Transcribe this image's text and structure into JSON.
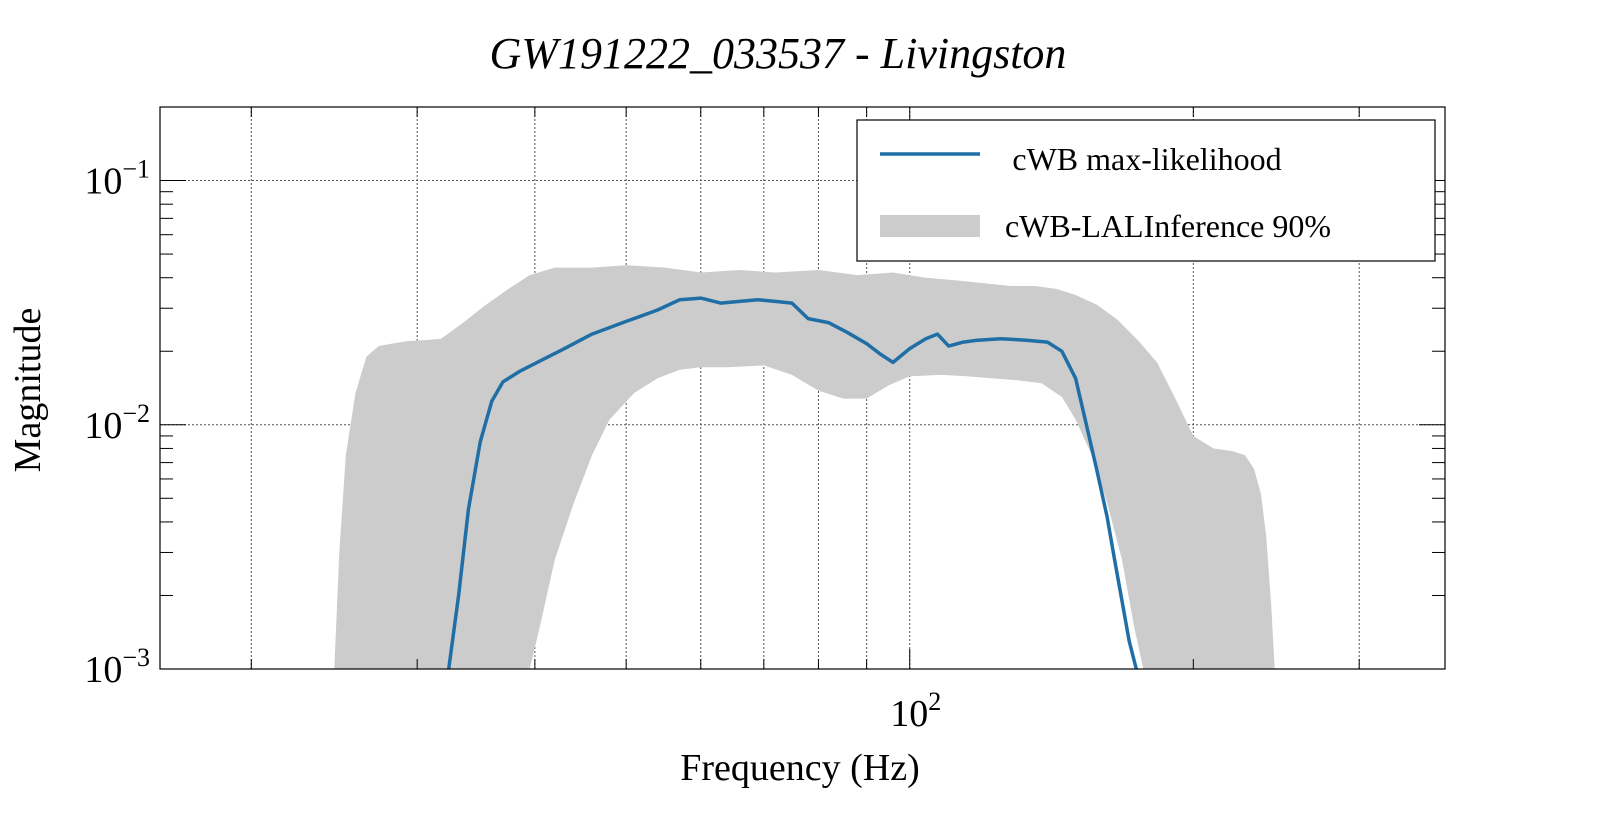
{
  "chart_data": {
    "type": "line",
    "title": "GW191222_033537 - Livingston",
    "xlabel": "Frequency (Hz)",
    "ylabel": "Magnitude",
    "xscale": "log",
    "yscale": "log",
    "xlim": [
      16,
      370
    ],
    "ylim": [
      0.001,
      0.2
    ],
    "grid": true,
    "legend_position": "top-right",
    "x_major_tick": {
      "value": 100,
      "base": "10",
      "exp": "2"
    },
    "x_minor_ticks": [
      20,
      30,
      40,
      50,
      60,
      70,
      80,
      90,
      200,
      300
    ],
    "y_major_ticks": [
      {
        "value": 0.1,
        "base": "10",
        "exp": "−1"
      },
      {
        "value": 0.01,
        "base": "10",
        "exp": "−2"
      },
      {
        "value": 0.001,
        "base": "10",
        "exp": "−3"
      }
    ],
    "y_minor_ticks": [
      0.002,
      0.003,
      0.004,
      0.005,
      0.006,
      0.007,
      0.008,
      0.009,
      0.02,
      0.03,
      0.04,
      0.05,
      0.06,
      0.07,
      0.08,
      0.09,
      0.2
    ],
    "series": [
      {
        "name": "cWB max-likelihood",
        "kind": "line",
        "color": "#1f6fa6",
        "x": [
          32.4,
          33.2,
          34.0,
          35.0,
          36.0,
          37.0,
          38.5,
          40.0,
          43.0,
          46.0,
          50.0,
          54.0,
          57.0,
          60.0,
          63.0,
          66.0,
          69.0,
          72.0,
          75.0,
          78.0,
          82.0,
          86.0,
          90.0,
          93.0,
          96.0,
          100.0,
          104.0,
          107.0,
          110.0,
          114.0,
          118.0,
          125.0,
          133.0,
          140.0,
          145.0,
          150.0,
          154.0,
          158.0,
          162.0,
          165.0,
          168.0,
          171.0,
          174.0
        ],
        "y": [
          0.001,
          0.002,
          0.0045,
          0.0085,
          0.0125,
          0.015,
          0.0165,
          0.0178,
          0.0205,
          0.0235,
          0.0265,
          0.0295,
          0.0325,
          0.033,
          0.0315,
          0.032,
          0.0325,
          0.032,
          0.0315,
          0.0272,
          0.0262,
          0.0238,
          0.0215,
          0.0195,
          0.018,
          0.0205,
          0.0225,
          0.0235,
          0.021,
          0.0218,
          0.0222,
          0.0225,
          0.0222,
          0.0218,
          0.02,
          0.0155,
          0.01,
          0.0065,
          0.0042,
          0.0028,
          0.0019,
          0.0013,
          0.001
        ]
      },
      {
        "name": "cWB-LALInference 90%",
        "kind": "band",
        "color": "#cccccc",
        "x_upper": [
          24.5,
          24.8,
          25.2,
          25.8,
          26.5,
          27.3,
          28.2,
          29.3,
          30.5,
          31.8,
          33.5,
          35.5,
          37.5,
          39.5,
          42.0,
          46.0,
          50.0,
          55.0,
          60.0,
          66.0,
          72.0,
          80.0,
          88.0,
          96.0,
          104.0,
          112.0,
          120.0,
          128.0,
          136.0,
          143.0,
          150.0,
          158.0,
          166.0,
          175.0,
          183.0,
          191.0,
          200.0,
          210.0,
          220.0,
          227.0,
          232.0,
          236.0,
          239.0,
          242.0,
          244.0
        ],
        "y_upper": [
          0.001,
          0.003,
          0.0075,
          0.0135,
          0.019,
          0.021,
          0.0215,
          0.022,
          0.0222,
          0.0225,
          0.026,
          0.031,
          0.036,
          0.041,
          0.044,
          0.044,
          0.045,
          0.044,
          0.042,
          0.043,
          0.042,
          0.043,
          0.041,
          0.042,
          0.04,
          0.039,
          0.038,
          0.037,
          0.037,
          0.036,
          0.034,
          0.031,
          0.027,
          0.022,
          0.018,
          0.013,
          0.009,
          0.008,
          0.0078,
          0.0075,
          0.0066,
          0.0052,
          0.0035,
          0.0018,
          0.001
        ],
        "x_lower": [
          39.5,
          40.5,
          42.0,
          44.0,
          46.0,
          48.0,
          51.0,
          54.0,
          57.0,
          60.0,
          64.0,
          70.0,
          75.0,
          80.0,
          85.0,
          90.0,
          95.0,
          100.0,
          108.0,
          115.0,
          122.0,
          130.0,
          138.0,
          145.0,
          150.0,
          156.0,
          162.0,
          168.0,
          173.0,
          177.0
        ],
        "y_lower": [
          0.001,
          0.0015,
          0.0028,
          0.0048,
          0.0075,
          0.0105,
          0.0135,
          0.0155,
          0.0168,
          0.0172,
          0.0172,
          0.0175,
          0.016,
          0.0138,
          0.0128,
          0.0128,
          0.0145,
          0.0158,
          0.016,
          0.0158,
          0.0155,
          0.0152,
          0.0148,
          0.013,
          0.0105,
          0.0075,
          0.0048,
          0.0028,
          0.0015,
          0.001
        ]
      }
    ]
  }
}
